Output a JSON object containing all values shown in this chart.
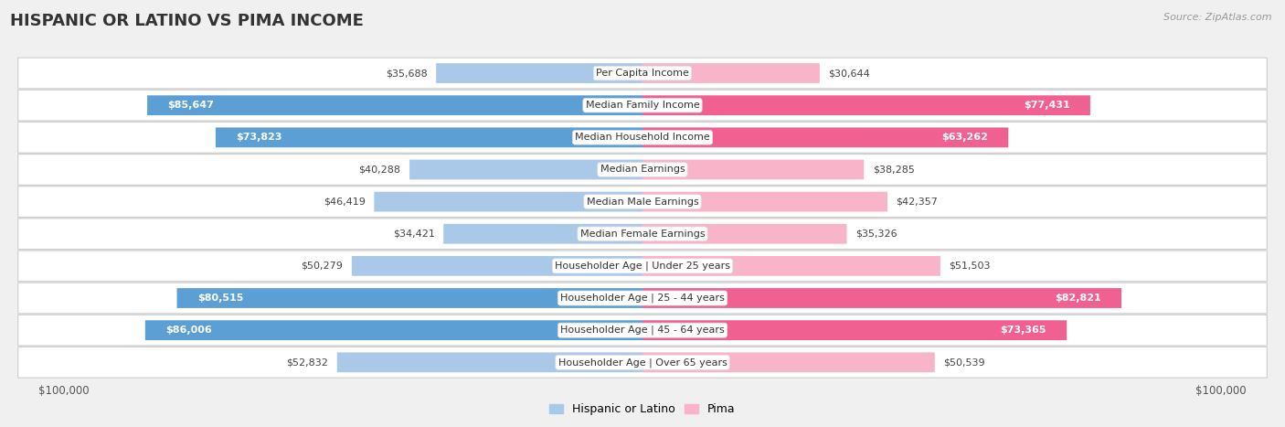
{
  "title": "HISPANIC OR LATINO VS PIMA INCOME",
  "source": "Source: ZipAtlas.com",
  "categories": [
    "Per Capita Income",
    "Median Family Income",
    "Median Household Income",
    "Median Earnings",
    "Median Male Earnings",
    "Median Female Earnings",
    "Householder Age | Under 25 years",
    "Householder Age | 25 - 44 years",
    "Householder Age | 45 - 64 years",
    "Householder Age | Over 65 years"
  ],
  "hispanic_values": [
    35688,
    85647,
    73823,
    40288,
    46419,
    34421,
    50279,
    80515,
    86006,
    52832
  ],
  "pima_values": [
    30644,
    77431,
    63262,
    38285,
    42357,
    35326,
    51503,
    82821,
    73365,
    50539
  ],
  "hispanic_labels": [
    "$35,688",
    "$85,647",
    "$73,823",
    "$40,288",
    "$46,419",
    "$34,421",
    "$50,279",
    "$80,515",
    "$86,006",
    "$52,832"
  ],
  "pima_labels": [
    "$30,644",
    "$77,431",
    "$63,262",
    "$38,285",
    "$42,357",
    "$35,326",
    "$51,503",
    "$82,821",
    "$73,365",
    "$50,539"
  ],
  "hispanic_color_light": "#aac8e8",
  "hispanic_color_dark": "#5b9fd4",
  "pima_color_light": "#f8b4c8",
  "pima_color_dark": "#f06090",
  "max_value": 100000,
  "bg_color": "#f0f0f0",
  "row_bg": "#ffffff",
  "bar_height": 0.62,
  "legend_hispanic": "Hispanic or Latino",
  "legend_pima": "Pima",
  "inside_label_threshold": 60000,
  "title_fontsize": 13,
  "label_fontsize": 8,
  "cat_fontsize": 8
}
